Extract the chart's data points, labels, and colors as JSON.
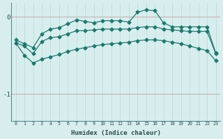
{
  "x": [
    0,
    1,
    2,
    3,
    4,
    5,
    6,
    7,
    8,
    9,
    10,
    11,
    12,
    13,
    14,
    15,
    16,
    17,
    18,
    19,
    20,
    21,
    22,
    23
  ],
  "y_top": [
    -0.3,
    -0.35,
    -0.4,
    -0.22,
    -0.16,
    -0.14,
    -0.09,
    -0.04,
    -0.06,
    -0.08,
    -0.05,
    -0.05,
    -0.05,
    -0.07,
    0.06,
    0.09,
    0.08,
    -0.08,
    -0.13,
    -0.13,
    -0.13,
    -0.13,
    -0.13,
    -0.47
  ],
  "y_mid": [
    -0.34,
    -0.38,
    -0.48,
    -0.32,
    -0.27,
    -0.26,
    -0.22,
    -0.18,
    -0.18,
    -0.17,
    -0.16,
    -0.16,
    -0.16,
    -0.16,
    -0.14,
    -0.13,
    -0.13,
    -0.16,
    -0.17,
    -0.18,
    -0.19,
    -0.19,
    -0.19,
    -0.48
  ],
  "y_bot": [
    -0.34,
    -0.5,
    -0.6,
    -0.55,
    -0.52,
    -0.49,
    -0.45,
    -0.42,
    -0.4,
    -0.38,
    -0.36,
    -0.35,
    -0.34,
    -0.33,
    -0.31,
    -0.3,
    -0.3,
    -0.31,
    -0.33,
    -0.35,
    -0.38,
    -0.41,
    -0.44,
    -0.57
  ],
  "xlabel": "Humidex (Indice chaleur)",
  "ylim": [
    -1.35,
    0.18
  ],
  "xlim": [
    -0.5,
    23.5
  ],
  "bg_color": "#d8eeee",
  "line_color": "#1a7a6e",
  "grid_color": "#b8d8d8",
  "hline_color": "#c8b0b0",
  "font_color": "#2a4a4a"
}
